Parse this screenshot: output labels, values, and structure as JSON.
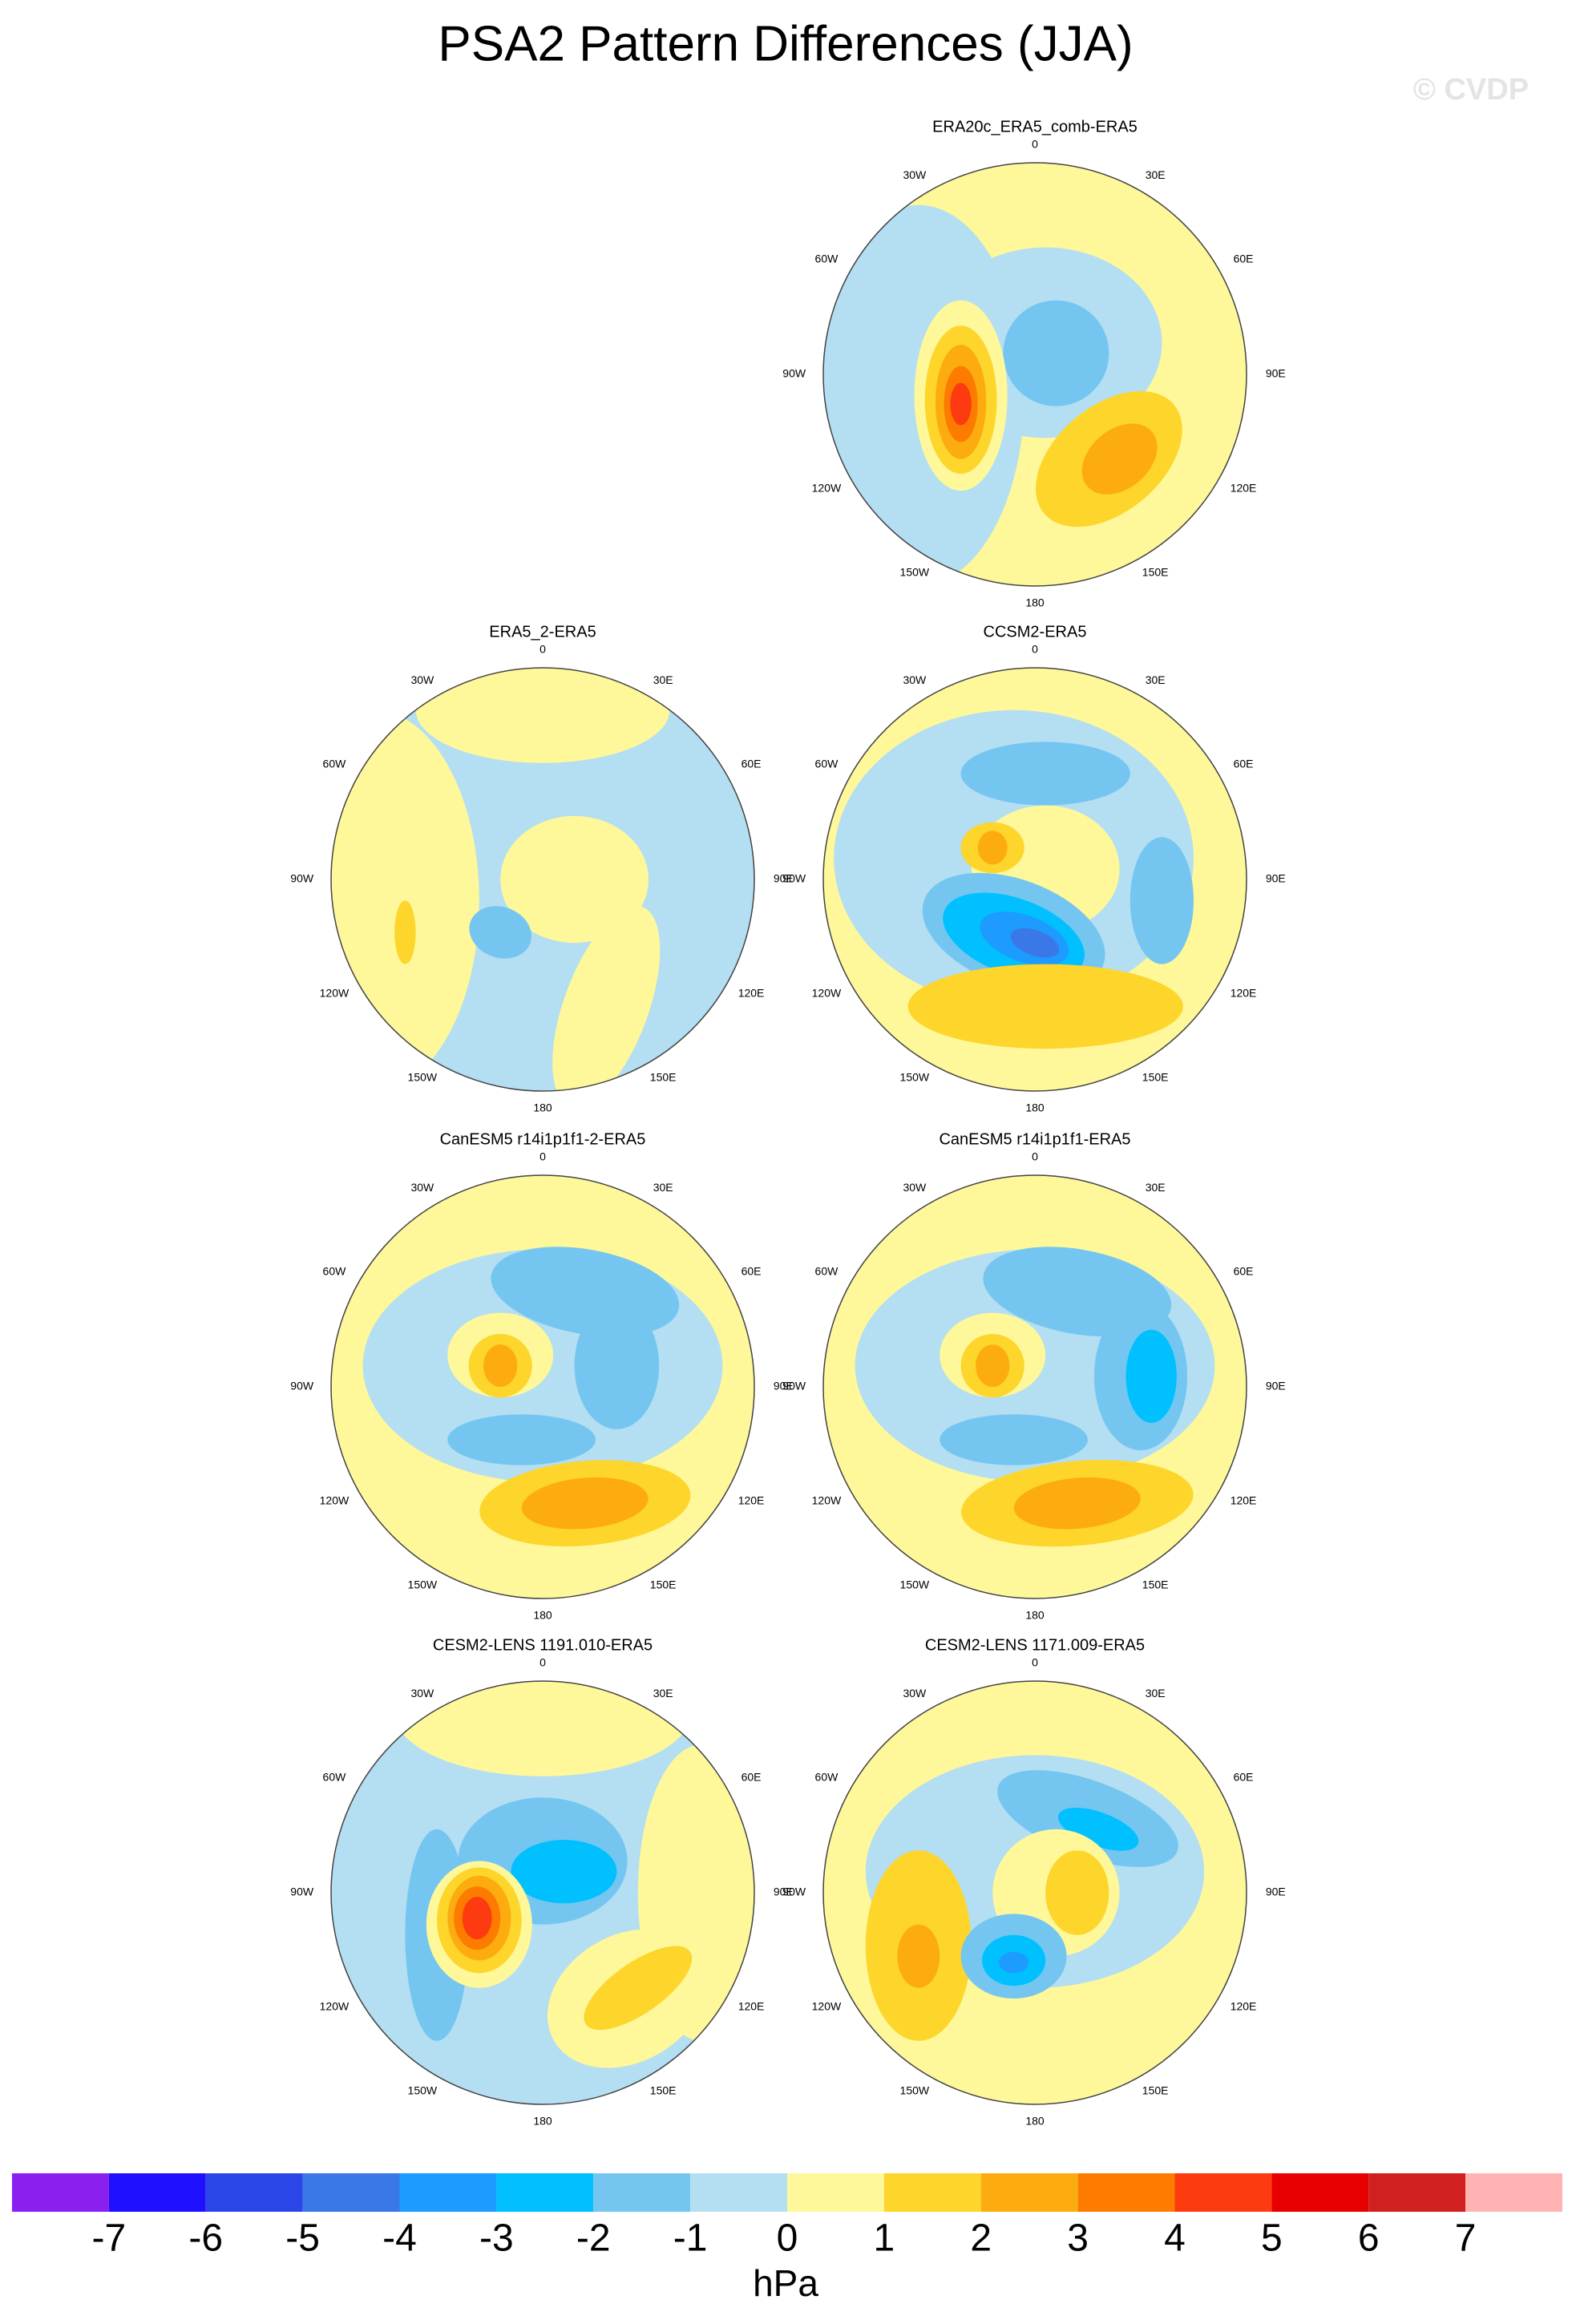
{
  "title": "PSA2 Pattern Differences (JJA)",
  "watermark": "© CVDP",
  "longitude_labels": [
    "0",
    "30E",
    "60E",
    "90E",
    "120E",
    "150E",
    "180",
    "150W",
    "120W",
    "90W",
    "60W",
    "30W"
  ],
  "panels": [
    {
      "title": "ERA20c_ERA5_comb-ERA5"
    },
    {
      "title": "ERA5_2-ERA5"
    },
    {
      "title": "CCSM2-ERA5"
    },
    {
      "title": "CanESM5 r14i1p1f1-2-ERA5"
    },
    {
      "title": "CanESM5 r14i1p1f1-ERA5"
    },
    {
      "title": "CESM2-LENS 1191.010-ERA5"
    },
    {
      "title": "CESM2-LENS 1171.009-ERA5"
    }
  ],
  "colorbar": {
    "ticks": [
      -7,
      -6,
      -5,
      -4,
      -3,
      -2,
      -1,
      0,
      1,
      2,
      3,
      4,
      5,
      6,
      7
    ],
    "colors": [
      "#8a1ff0",
      "#1f10ff",
      "#2a46e8",
      "#3a78e8",
      "#1e9bff",
      "#00c0ff",
      "#74c6f0",
      "#b4def2",
      "#fef89a",
      "#fdd52b",
      "#fdac10",
      "#fd7c00",
      "#fd3a10",
      "#e80000",
      "#d02020",
      "#ffb3b3"
    ],
    "unit": "hPa"
  }
}
